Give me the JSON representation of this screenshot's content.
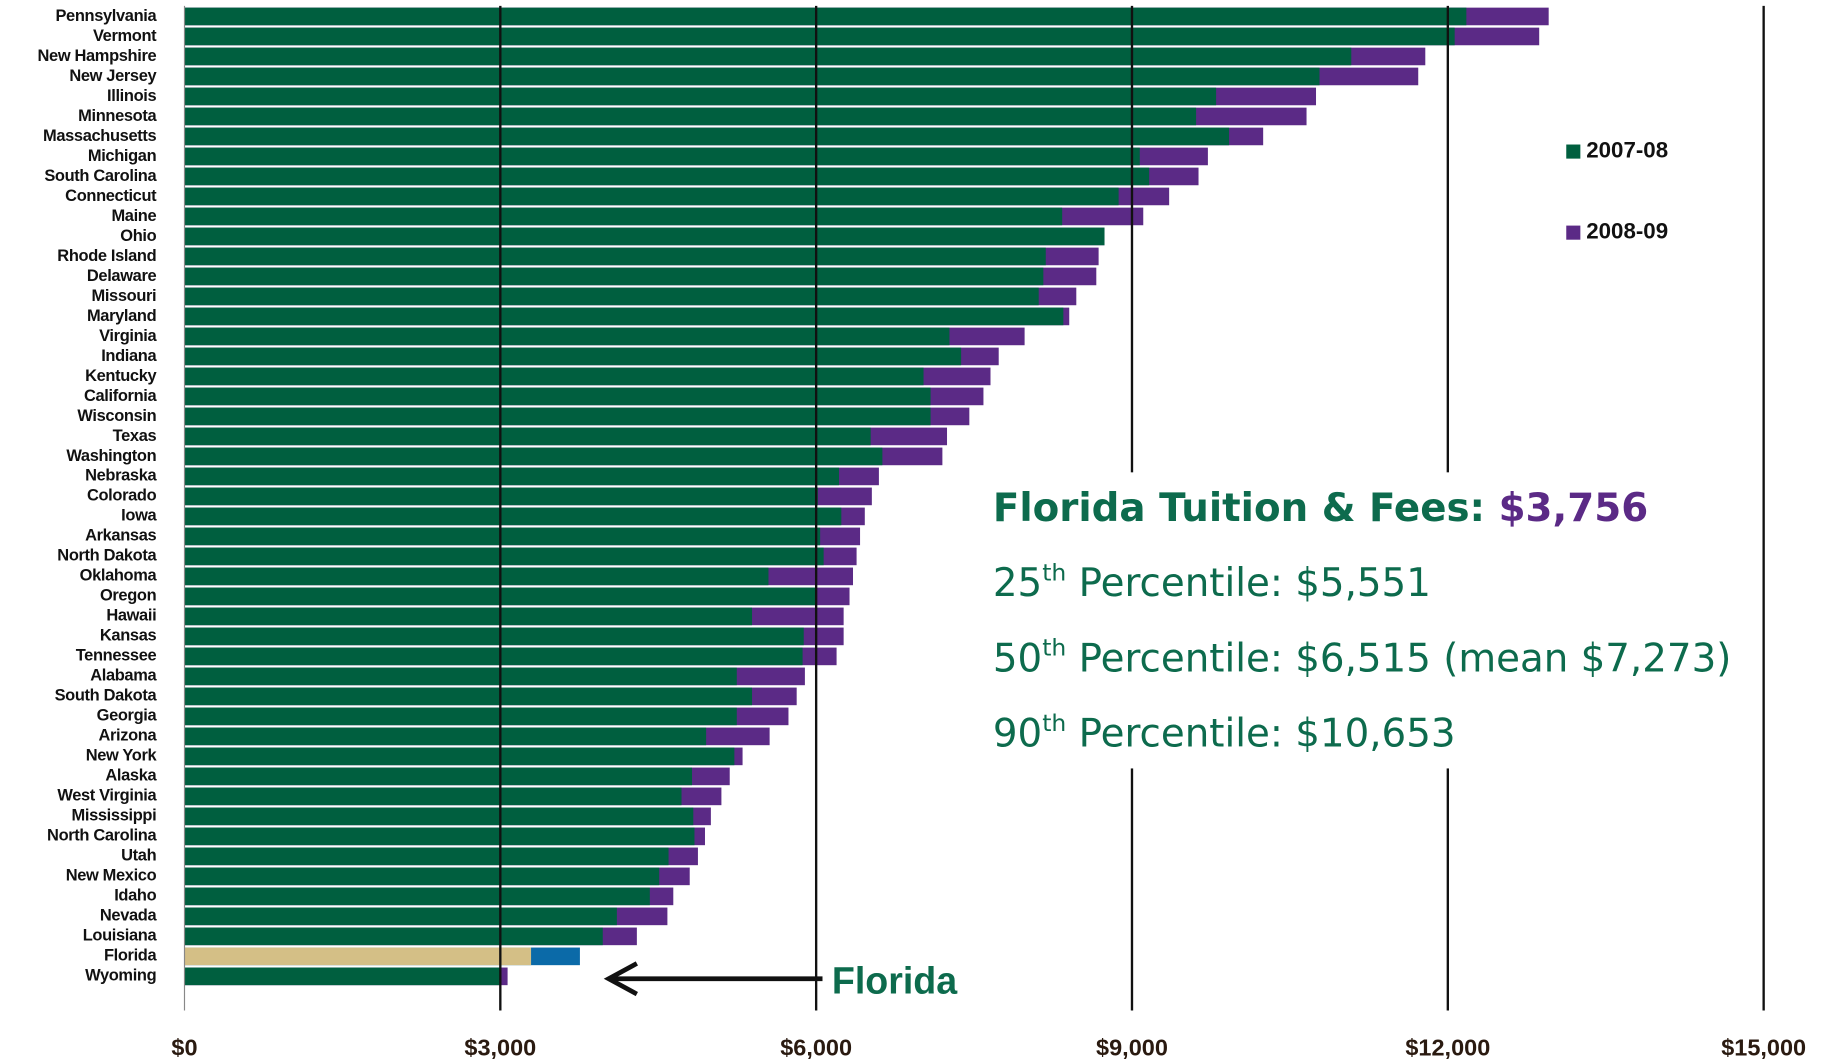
{
  "chart_data": {
    "type": "bar",
    "orientation": "horizontal",
    "categories": [
      "Pennsylvania",
      "Vermont",
      "New Hampshire",
      "New Jersey",
      "Illinois",
      "Minnesota",
      "Massachusetts",
      "Michigan",
      "South Carolina",
      "Connecticut",
      "Maine",
      "Ohio",
      "Rhode Island",
      "Delaware",
      "Missouri",
      "Maryland",
      "Virginia",
      "Indiana",
      "Kentucky",
      "California",
      "Wisconsin",
      "Texas",
      "Washington",
      "Nebraska",
      "Colorado",
      "Iowa",
      "Arkansas",
      "North Dakota",
      "Oklahoma",
      "Oregon",
      "Hawaii",
      "Kansas",
      "Tennessee",
      "Alabama",
      "South Dakota",
      "Georgia",
      "Arizona",
      "New York",
      "Alaska",
      "West Virginia",
      "Mississippi",
      "North Carolina",
      "Utah",
      "New Mexico",
      "Idaho",
      "Nevada",
      "Louisiana",
      "Florida",
      "Wyoming"
    ],
    "series": [
      {
        "name": "2007-08",
        "color": "#005f3f",
        "values": [
          12176,
          12065,
          11083,
          10781,
          9799,
          9609,
          9922,
          9074,
          9163,
          8873,
          8337,
          8739,
          8181,
          8158,
          8114,
          8348,
          7266,
          7377,
          7020,
          7087,
          7087,
          6518,
          6629,
          6217,
          6016,
          6239,
          6038,
          6071,
          5547,
          5993,
          5391,
          5882,
          5871,
          5246,
          5391,
          5246,
          4955,
          5223,
          4821,
          4721,
          4833,
          4844,
          4598,
          4509,
          4420,
          4107,
          3973,
          3292,
          3002
        ]
      },
      {
        "name": "2008-09",
        "color": "#5b2a86",
        "values": [
          12958,
          12868,
          11786,
          11719,
          10748,
          10658,
          10246,
          9721,
          9632,
          9353,
          9107,
          8739,
          8683,
          8661,
          8471,
          8404,
          7980,
          7734,
          7656,
          7589,
          7455,
          7243,
          7199,
          6596,
          6529,
          6462,
          6417,
          6384,
          6350,
          6317,
          6261,
          6261,
          6194,
          5893,
          5815,
          5737,
          5558,
          5301,
          5179,
          5100,
          5000,
          4944,
          4877,
          4799,
          4643,
          4587,
          4297,
          3756,
          3069
        ]
      }
    ],
    "overlap": true,
    "highlight": {
      "category": "Florida",
      "colors": [
        "#d4bf86",
        "#0b6aa8"
      ]
    },
    "xlim": [
      0,
      15000
    ],
    "xticks": [
      {
        "value": 0,
        "label": "$0"
      },
      {
        "value": 3000,
        "label": "$3,000"
      },
      {
        "value": 6000,
        "label": "$6,000"
      },
      {
        "value": 9000,
        "label": "$9,000"
      },
      {
        "value": 12000,
        "label": "$12,000"
      },
      {
        "value": 15000,
        "label": "$15,000"
      }
    ],
    "grid": true,
    "legend": "upper right",
    "annotation": "Florida",
    "text_block": [
      {
        "label": "Florida Tuition & Fees: ",
        "value": "$3,756"
      },
      {
        "number": "25",
        "suffix": "th",
        "text": " Percentile: $5,551"
      },
      {
        "number": "50",
        "suffix": "th",
        "text": " Percentile: $6,515 (mean $7,273)"
      },
      {
        "number": "90",
        "suffix": "th",
        "text": " Percentile: $10,653"
      }
    ]
  }
}
